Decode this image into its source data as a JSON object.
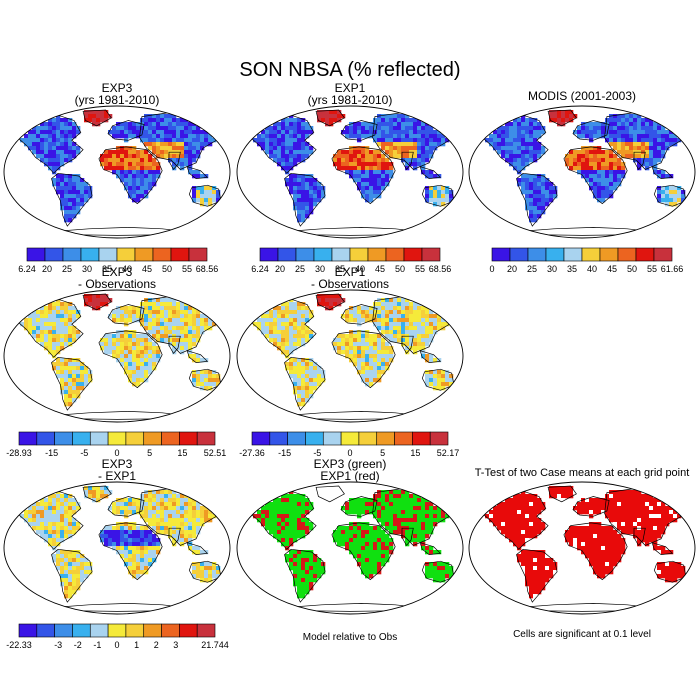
{
  "title": "SON NBSA (% reflected)",
  "palettes": {
    "absolute": [
      "#3a14e6",
      "#3355e8",
      "#3d8ee8",
      "#38b0ee",
      "#a9d3ef",
      "#f5cf3a",
      "#ef9a24",
      "#ec6420",
      "#e0150f",
      "#c8313c"
    ],
    "difference": [
      "#3a14e6",
      "#3355e8",
      "#3d8ee8",
      "#38b0ee",
      "#a9d3ef",
      "#f5ea3a",
      "#f5cf3a",
      "#ef9a24",
      "#ec6420",
      "#e0150f",
      "#c8313c"
    ]
  },
  "panels": [
    {
      "id": "exp3-abs",
      "title1": "EXP3",
      "title2": "(yrs 1981-2010)",
      "palette": "absolute",
      "land": "abs",
      "labels": [
        "6.24",
        "20",
        "25",
        "30",
        "35",
        "40",
        "45",
        "50",
        "55",
        "68.56"
      ]
    },
    {
      "id": "exp1-abs",
      "title1": "EXP1",
      "title2": "(yrs 1981-2010)",
      "palette": "absolute",
      "land": "abs",
      "labels": [
        "6.24",
        "20",
        "25",
        "30",
        "35",
        "40",
        "45",
        "50",
        "55",
        "68.56"
      ]
    },
    {
      "id": "modis",
      "title1": "MODIS (2001-2003)",
      "title2": "",
      "palette": "absolute",
      "land": "abs",
      "labels": [
        "0",
        "20",
        "25",
        "30",
        "35",
        "40",
        "45",
        "50",
        "55",
        "61.66"
      ]
    },
    {
      "id": "exp3-obs",
      "title1": "EXP3",
      "title2": "- Observations",
      "palette": "difference",
      "land": "diff",
      "labels": [
        "-28.93",
        "",
        "-15",
        "",
        "-5",
        "",
        "0",
        "",
        "5",
        "",
        "15",
        "",
        "52.51"
      ]
    },
    {
      "id": "exp1-obs",
      "title1": "EXP1",
      "title2": "- Observations",
      "palette": "difference",
      "land": "diff",
      "labels": [
        "-27.36",
        "",
        "-15",
        "",
        "-5",
        "",
        "0",
        "",
        "5",
        "",
        "15",
        "",
        "52.17"
      ]
    },
    {
      "id": "exp3-exp1",
      "title1": "EXP3",
      "title2": "- EXP1",
      "palette": "difference",
      "land": "diff2",
      "labels": [
        "-22.33",
        "",
        "-3",
        "-2",
        "-1",
        "0",
        "1",
        "2",
        "3",
        "",
        "21.744"
      ]
    },
    {
      "id": "green-red",
      "title1": "EXP3 (green)",
      "title2": "EXP1 (red)",
      "palette": "",
      "land": "greenred",
      "labels": []
    },
    {
      "id": "ttest",
      "title1": "T-Test of two Case means at each grid point",
      "title2": "",
      "palette": "",
      "land": "red",
      "labels": []
    }
  ],
  "captions": {
    "model_relative": "Model relative to Obs",
    "significance": "Cells are significant at 0.1 level"
  }
}
